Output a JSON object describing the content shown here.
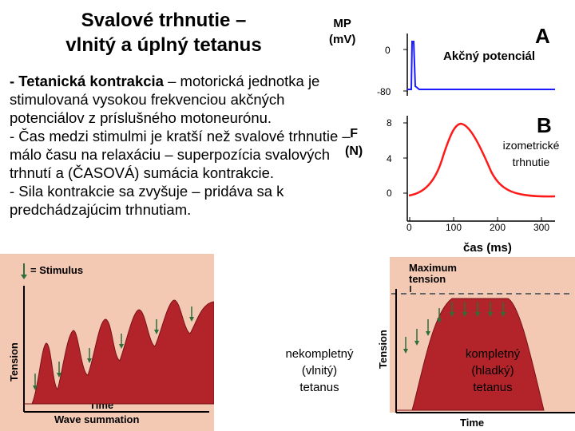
{
  "title": {
    "line1": "Svalové trhnutie –",
    "line2": "vlnitý a úplný tetanus"
  },
  "mp_label": {
    "line1": "MP",
    "line2": "(mV)"
  },
  "body": {
    "p1_bold": "- Tetanická kontrakcia",
    "p1_rest": " – motorická jednotka je stimulovaná vysokou frekvenciou akčných potenciálov z príslušného motoneurónu.",
    "p2": "- Čas medzi stimulmi je kratší než svalové trhnutie – málo času na relaxáciu – superpozícia svalových trhnutí a (ČASOVÁ) sumácia kontrakcie.",
    "p3": "- Sila kontrakcie sa zvyšuje – pridáva sa k predchádzajúcim trhnutiam."
  },
  "force_label": {
    "line1": "F",
    "line2": "(N)"
  },
  "panel_a": {
    "letter": "A",
    "label": "Akčný potenciál",
    "y_ticks": [
      "0",
      "-80"
    ]
  },
  "panel_b": {
    "letter": "B",
    "label_line1": "izometrické",
    "label_line2": "trhnutie",
    "y_ticks": [
      "8",
      "4",
      "0"
    ],
    "x_ticks": [
      "0",
      "100",
      "200",
      "300"
    ],
    "x_label": "čas (ms)"
  },
  "left_figure": {
    "stimulus_label": "= Stimulus",
    "y_label": "Tension",
    "x_label": "Time",
    "caption": "Wave summation",
    "overlay_line1": "nekompletný",
    "overlay_line2": "(vlnitý)",
    "overlay_line3": "tetanus"
  },
  "right_figure": {
    "max_label_line1": "Maximum",
    "max_label_line2": "tension",
    "y_label": "Tension",
    "x_label": "Time",
    "overlay_line1": "kompletný",
    "overlay_line2": "(hladký)",
    "overlay_line3": "tetanus"
  },
  "colors": {
    "action_potential": "#1a1aff",
    "twitch": "#ff1a1a",
    "tension_fill": "#b3242a",
    "panel_bg": "#f4c9b4",
    "stimulus_arrow": "#2d6e3a",
    "max_tension_line": "#666666"
  }
}
